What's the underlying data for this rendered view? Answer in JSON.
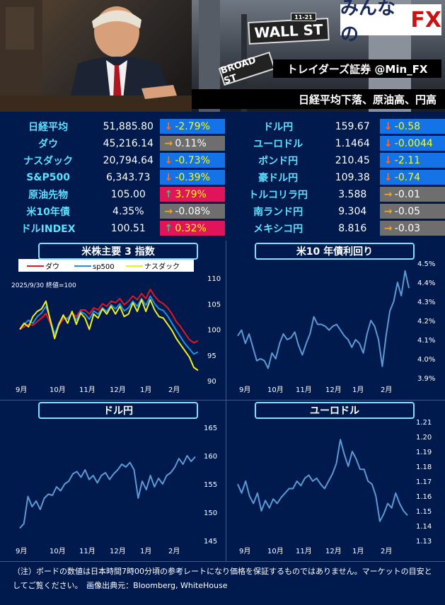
{
  "header": {
    "logo_text": "みんなの",
    "logo_fx": "FX",
    "banner_title": "トレイダーズ証券 @Min_FX",
    "headline": "日経平均下落、原油高、円高",
    "sign_wall": "WALL ST",
    "sign_num": "11-21",
    "sign_broad": "BROAD ST"
  },
  "markets": {
    "left": [
      {
        "name": "日経平均",
        "value": "51,885.80",
        "change": "-2.79%",
        "dir": "down"
      },
      {
        "name": "ダウ",
        "value": "45,216.14",
        "change": "0.11%",
        "dir": "flat"
      },
      {
        "name": "ナスダック",
        "value": "20,794.64",
        "change": "-0.73%",
        "dir": "down"
      },
      {
        "name": "S&P500",
        "value": "6,343.73",
        "change": "-0.39%",
        "dir": "down"
      },
      {
        "name": "原油先物",
        "value": "105.00",
        "change": "3.79%",
        "dir": "up"
      },
      {
        "name": "米10年債",
        "value": "4.35%",
        "change": "-0.08%",
        "dir": "flat"
      },
      {
        "name": "ドルINDEX",
        "value": "100.51",
        "change": "0.32%",
        "dir": "up"
      }
    ],
    "right": [
      {
        "name": "ドル円",
        "value": "159.67",
        "change": "-0.58",
        "dir": "down"
      },
      {
        "name": "ユーロドル",
        "value": "1.1464",
        "change": "-0.0044",
        "dir": "down"
      },
      {
        "name": "ポンド円",
        "value": "210.45",
        "change": "-2.11",
        "dir": "down"
      },
      {
        "name": "豪ドル円",
        "value": "109.38",
        "change": "-0.74",
        "dir": "down"
      },
      {
        "name": "トルコリラ円",
        "value": "3.588",
        "change": "-0.01",
        "dir": "flat"
      },
      {
        "name": "南ランド円",
        "value": "9.304",
        "change": "-0.05",
        "dir": "flat"
      },
      {
        "name": "メキシコ円",
        "value": "8.816",
        "change": "-0.03",
        "dir": "flat"
      }
    ]
  },
  "chart_data": [
    {
      "type": "line",
      "title": "米株主要 3 指数",
      "annotation": "2025/9/30 終値=100",
      "legend_position": "top-left",
      "x_ticks": [
        "9月",
        "10月",
        "11月",
        "12月",
        "1月",
        "2月"
      ],
      "ylim": [
        90,
        110
      ],
      "y_ticks": [
        90,
        95,
        100,
        105,
        110
      ],
      "series": [
        {
          "name": "ダウ",
          "color": "#e8141e",
          "values": [
            100,
            100.5,
            101,
            100.8,
            101.5,
            102.2,
            103.1,
            101.2,
            99.2,
            100.8,
            102.0,
            102.2,
            103.2,
            102.5,
            103.8,
            103.8,
            103.0,
            104.2,
            103.8,
            105.0,
            104.5,
            105.5,
            105.2,
            106.0,
            104.8,
            105.5,
            106.5,
            105.8,
            107.0,
            106.0,
            107.8,
            106.5,
            105.5,
            105.0,
            104.2,
            103.0,
            101.5,
            100.5,
            99.2,
            98.0,
            97.4,
            97.8
          ]
        },
        {
          "name": "sp500",
          "color": "#1e90e8",
          "values": [
            100,
            101.0,
            101.8,
            101.2,
            102.5,
            103.2,
            104.5,
            102.0,
            99.0,
            101.2,
            102.5,
            102.0,
            103.2,
            101.8,
            103.5,
            103.0,
            102.0,
            103.6,
            103.0,
            104.2,
            103.5,
            104.8,
            104.0,
            105.0,
            103.6,
            104.2,
            105.5,
            104.5,
            106.0,
            104.7,
            106.5,
            105.0,
            104.0,
            103.7,
            102.6,
            101.2,
            99.8,
            98.5,
            97.2,
            96.2,
            95.2,
            95.6
          ]
        },
        {
          "name": "ナスダック",
          "color": "#f5f014",
          "values": [
            100,
            101.2,
            100.5,
            102.5,
            103.5,
            104.0,
            105.5,
            101.8,
            98.2,
            101.0,
            102.8,
            101.2,
            103.5,
            101.0,
            103.2,
            102.2,
            100.0,
            103.0,
            102.2,
            104.0,
            103.0,
            104.5,
            103.0,
            104.5,
            102.5,
            103.0,
            105.2,
            103.5,
            105.8,
            103.5,
            105.8,
            103.8,
            102.5,
            102.2,
            101.0,
            99.8,
            98.2,
            97.0,
            95.8,
            94.6,
            92.6,
            92.0
          ]
        }
      ]
    },
    {
      "type": "line",
      "title": "米10 年債利回り",
      "x_ticks": [
        "9月",
        "10月",
        "11月",
        "12月",
        "1月",
        "2月"
      ],
      "ylim": [
        3.9,
        4.5
      ],
      "y_ticks": [
        "3.9%",
        "4.0%",
        "4.1%",
        "4.2%",
        "4.3%",
        "4.4%",
        "4.5%"
      ],
      "series": [
        {
          "name": "",
          "color": "#5b9bd5",
          "values": [
            4.12,
            4.15,
            4.08,
            4.13,
            4.06,
            3.99,
            4.0,
            3.99,
            3.95,
            4.03,
            4.0,
            4.08,
            4.13,
            4.1,
            4.11,
            4.14,
            4.07,
            4.02,
            4.08,
            4.13,
            4.22,
            4.18,
            4.18,
            4.17,
            4.15,
            4.17,
            4.18,
            4.15,
            4.12,
            4.1,
            4.06,
            4.1,
            4.08,
            4.03,
            4.13,
            4.2,
            4.17,
            4.1,
            3.96,
            4.12,
            4.25,
            4.3,
            4.4,
            4.33,
            4.46,
            4.37
          ]
        }
      ]
    },
    {
      "type": "line",
      "title": "ドル円",
      "x_ticks": [
        "9月",
        "10月",
        "11月",
        "12月",
        "1月",
        "2月"
      ],
      "ylim": [
        145,
        165
      ],
      "y_ticks": [
        145,
        150,
        155,
        160,
        165
      ],
      "series": [
        {
          "name": "",
          "color": "#5b9bd5",
          "values": [
            147.2,
            148.0,
            152.8,
            151.0,
            152.0,
            150.5,
            152.5,
            153.2,
            153.0,
            154.5,
            153.8,
            155.0,
            155.5,
            156.8,
            157.2,
            156.2,
            157.5,
            155.8,
            156.5,
            155.2,
            156.5,
            157.0,
            155.8,
            156.8,
            157.5,
            158.5,
            158.0,
            158.8,
            157.5,
            152.5,
            155.5,
            154.0,
            156.5,
            154.5,
            156.0,
            155.0,
            156.5,
            157.0,
            158.0,
            159.5,
            158.5,
            160.0,
            159.0,
            159.8
          ]
        }
      ]
    },
    {
      "type": "line",
      "title": "ユーロドル",
      "x_ticks": [
        "9月",
        "10月",
        "11月",
        "12月",
        "1月",
        "2月"
      ],
      "ylim": [
        1.13,
        1.21
      ],
      "y_ticks": [
        "1.13",
        "1.14",
        "1.15",
        "1.16",
        "1.17",
        "1.18",
        "1.19",
        "1.20",
        "1.21"
      ],
      "series": [
        {
          "name": "",
          "color": "#5b9bd5",
          "values": [
            1.168,
            1.162,
            1.17,
            1.16,
            1.155,
            1.162,
            1.15,
            1.157,
            1.152,
            1.158,
            1.155,
            1.159,
            1.162,
            1.165,
            1.165,
            1.17,
            1.167,
            1.172,
            1.174,
            1.17,
            1.172,
            1.168,
            1.165,
            1.17,
            1.175,
            1.182,
            1.198,
            1.188,
            1.18,
            1.19,
            1.185,
            1.178,
            1.178,
            1.17,
            1.168,
            1.16,
            1.143,
            1.148,
            1.155,
            1.152,
            1.162,
            1.155,
            1.15,
            1.147
          ]
        }
      ]
    }
  ],
  "footer": {
    "note": "（注）ボードの数値は日本時間7時00分頃の参考レートになり価格を保証するものではありません。マーケットの目安としてご覧ください。　画像出典元：Bloomberg, WhiteHouse"
  }
}
